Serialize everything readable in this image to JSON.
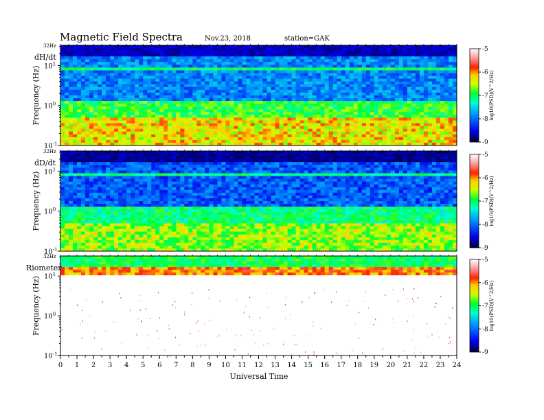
{
  "figure": {
    "title": "Magnetic Field Spectra",
    "date": "Nov.23, 2018",
    "station": "station=GAK"
  },
  "chart_data": [
    {
      "type": "heatmap",
      "panel_label": "dH/dt",
      "top_label": "32Hz",
      "ylabel": "Frequency (Hz)",
      "yscale": "log",
      "ylim": [
        0.1,
        32
      ],
      "yticks": [
        {
          "base": "10",
          "exp": "-1",
          "value": 0.1
        },
        {
          "base": "10",
          "exp": "0",
          "value": 1
        },
        {
          "base": "10",
          "exp": "1",
          "value": 10
        }
      ],
      "xlim": [
        0,
        24
      ],
      "colorbar": {
        "label": "log10(PSD)(V^2/Hz)",
        "range": [
          -9,
          -5
        ],
        "ticks": [
          "-5",
          "-6",
          "-7",
          "-8",
          "-9"
        ]
      },
      "features": [
        {
          "band": "low",
          "log10_psd": -6.3
        },
        {
          "band": "mid",
          "log10_psd": -7.9
        },
        {
          "band": "line_8Hz",
          "log10_psd": -7.0
        },
        {
          "band": "high",
          "log10_psd": -8.8
        }
      ]
    },
    {
      "type": "heatmap",
      "panel_label": "dD/dt",
      "top_label": "32Hz",
      "ylabel": "Frequency (Hz)",
      "yscale": "log",
      "ylim": [
        0.1,
        32
      ],
      "yticks": [
        {
          "base": "10",
          "exp": "-1",
          "value": 0.1
        },
        {
          "base": "10",
          "exp": "0",
          "value": 1
        },
        {
          "base": "10",
          "exp": "1",
          "value": 10
        }
      ],
      "xlim": [
        0,
        24
      ],
      "colorbar": {
        "label": "log10(PSD)(V^2/Hz)",
        "range": [
          -9,
          -5
        ],
        "ticks": [
          "-5",
          "-6",
          "-7",
          "-8",
          "-9"
        ]
      },
      "features": [
        {
          "band": "low",
          "log10_psd": -6.6
        },
        {
          "band": "mid",
          "log10_psd": -8.1
        },
        {
          "band": "line_8Hz",
          "log10_psd": -7.1
        },
        {
          "band": "high",
          "log10_psd": -8.9
        }
      ]
    },
    {
      "type": "heatmap",
      "panel_label": "Riometer",
      "top_label": "32Hz",
      "ylabel": "Frequency (Hz)",
      "yscale": "log",
      "ylim": [
        0.1,
        32
      ],
      "yticks": [
        {
          "base": "10",
          "exp": "-1",
          "value": 0.1
        },
        {
          "base": "10",
          "exp": "0",
          "value": 1
        },
        {
          "base": "10",
          "exp": "1",
          "value": 10
        }
      ],
      "xlim": [
        0,
        24
      ],
      "colorbar": {
        "label": "log10(PSD)(V^2/Hz)",
        "range": [
          -9,
          -5
        ],
        "ticks": [
          "-5",
          "-6",
          "-7",
          "-8",
          "-9"
        ]
      },
      "features": [
        {
          "band": "top_16_32Hz",
          "log10_psd": -7.0
        },
        {
          "band": "10_16Hz",
          "log10_psd": -6.0
        },
        {
          "band": "below_10Hz",
          "log10_psd": -5.0
        }
      ]
    }
  ],
  "x_axis": {
    "label": "Universal Time",
    "ticks": [
      "0",
      "1",
      "2",
      "3",
      "4",
      "5",
      "6",
      "7",
      "8",
      "9",
      "10",
      "11",
      "12",
      "13",
      "14",
      "15",
      "16",
      "17",
      "18",
      "19",
      "20",
      "21",
      "22",
      "23",
      "24"
    ]
  },
  "colors": {
    "colormap": [
      "#000033",
      "#0000ff",
      "#00ccff",
      "#00ff66",
      "#ffff00",
      "#ff0000",
      "#ffffff"
    ]
  }
}
